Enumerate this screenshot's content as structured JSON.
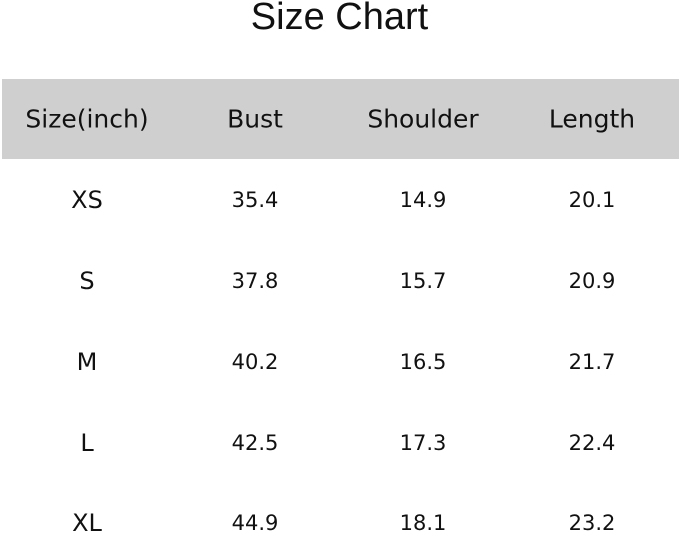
{
  "title": "Size Chart",
  "colors": {
    "header_bg": "#d0cfd0"
  },
  "table": {
    "headers": [
      "Size(inch)",
      "Bust",
      "Shoulder",
      "Length"
    ],
    "rows": [
      [
        "XS",
        "35.4",
        "14.9",
        "20.1"
      ],
      [
        "S",
        "37.8",
        "15.7",
        "20.9"
      ],
      [
        "M",
        "40.2",
        "16.5",
        "21.7"
      ],
      [
        "L",
        "42.5",
        "17.3",
        "22.4"
      ],
      [
        "XL",
        "44.9",
        "18.1",
        "23.2"
      ]
    ]
  }
}
